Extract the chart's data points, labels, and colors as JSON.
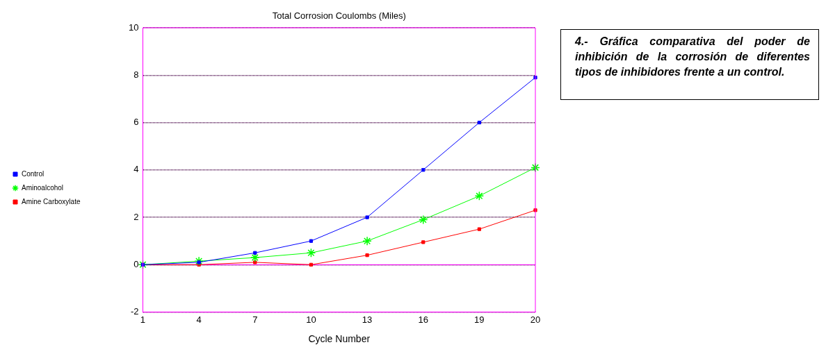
{
  "chart_data": {
    "type": "line",
    "title": "Total Corrosion Coulombs (Miles)",
    "xlabel": "Cycle Number",
    "categories": [
      "1",
      "4",
      "7",
      "10",
      "13",
      "16",
      "19",
      "20"
    ],
    "series": [
      {
        "name": "Control",
        "color": "#0000ff",
        "marker": "square",
        "values": [
          0,
          0.1,
          0.5,
          1.0,
          2.0,
          4.0,
          6.0,
          7.9
        ]
      },
      {
        "name": "Aminoalcohol",
        "color": "#00ff00",
        "marker": "cross",
        "values": [
          0,
          0.15,
          0.3,
          0.5,
          1.0,
          1.9,
          2.9,
          4.1
        ]
      },
      {
        "name": "Amine Carboxylate",
        "color": "#ff0000",
        "marker": "square",
        "values": [
          0,
          0,
          0.1,
          0,
          0.4,
          0.95,
          1.5,
          2.3
        ]
      }
    ],
    "ylim": [
      -2,
      10
    ],
    "yticks": [
      -2,
      0,
      2,
      4,
      6,
      8,
      10
    ],
    "grid": "y",
    "legend": "left",
    "ref_lines": [
      {
        "axis": "y",
        "value": 0,
        "color": "#ff00ff"
      }
    ],
    "annotations": [
      "4.- Gráfica comparativa del poder de inhibición de la corrosión de diferentes tipos de inhibidores frente a un control."
    ]
  }
}
